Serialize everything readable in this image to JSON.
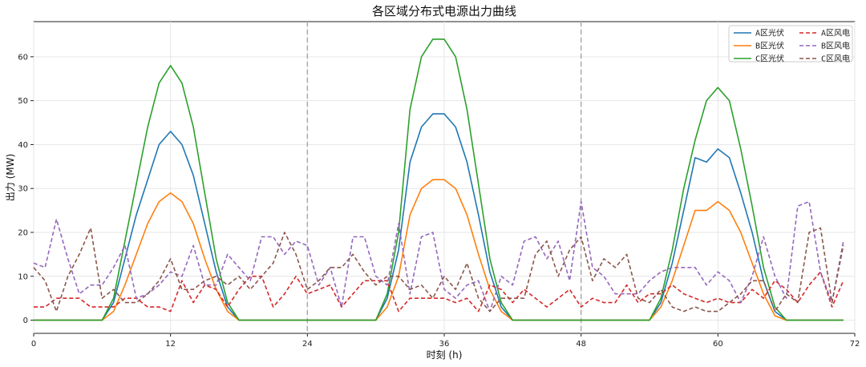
{
  "chart_data": {
    "type": "line",
    "title": "各区域分布式电源出力曲线",
    "xlabel": "时刻 (h)",
    "ylabel": "出力 (MW)",
    "xlim": [
      0,
      72
    ],
    "ylim": [
      -3,
      68
    ],
    "xticks": [
      0,
      12,
      24,
      36,
      48,
      60,
      72
    ],
    "yticks": [
      0,
      10,
      20,
      30,
      40,
      50,
      60
    ],
    "grid": true,
    "legend_position": "top-right",
    "vlines": [
      24,
      48
    ],
    "x": [
      0,
      1,
      2,
      3,
      4,
      5,
      6,
      7,
      8,
      9,
      10,
      11,
      12,
      13,
      14,
      15,
      16,
      17,
      18,
      19,
      20,
      21,
      22,
      23,
      24,
      25,
      26,
      27,
      28,
      29,
      30,
      31,
      32,
      33,
      34,
      35,
      36,
      37,
      38,
      39,
      40,
      41,
      42,
      43,
      44,
      45,
      46,
      47,
      48,
      49,
      50,
      51,
      52,
      53,
      54,
      55,
      56,
      57,
      58,
      59,
      60,
      61,
      62,
      63,
      64,
      65,
      66,
      67,
      68,
      69,
      70,
      71
    ],
    "series": [
      {
        "name": "A区光伏",
        "color": "#1f77b4",
        "dash": false,
        "values": [
          0,
          0,
          0,
          0,
          0,
          0,
          0,
          4,
          14,
          24,
          32,
          40,
          43,
          40,
          33,
          22,
          11,
          3,
          0,
          0,
          0,
          0,
          0,
          0,
          0,
          0,
          0,
          0,
          0,
          0,
          0,
          5,
          16,
          36,
          44,
          47,
          47,
          44,
          36,
          24,
          11,
          3,
          0,
          0,
          0,
          0,
          0,
          0,
          0,
          0,
          0,
          0,
          0,
          0,
          0,
          4,
          13,
          25,
          37,
          36,
          39,
          37,
          29,
          20,
          9,
          2,
          0,
          0,
          0,
          0,
          0,
          0
        ]
      },
      {
        "name": "B区光伏",
        "color": "#ff7f0e",
        "dash": false,
        "values": [
          0,
          0,
          0,
          0,
          0,
          0,
          0,
          2,
          8,
          15,
          22,
          27,
          29,
          27,
          22,
          14,
          7,
          2,
          0,
          0,
          0,
          0,
          0,
          0,
          0,
          0,
          0,
          0,
          0,
          0,
          0,
          3,
          10,
          24,
          30,
          32,
          32,
          30,
          24,
          15,
          7,
          2,
          0,
          0,
          0,
          0,
          0,
          0,
          0,
          0,
          0,
          0,
          0,
          0,
          0,
          3,
          9,
          17,
          25,
          25,
          27,
          25,
          20,
          13,
          6,
          1,
          0,
          0,
          0,
          0,
          0,
          0
        ]
      },
      {
        "name": "C区光伏",
        "color": "#2ca02c",
        "dash": false,
        "values": [
          0,
          0,
          0,
          0,
          0,
          0,
          0,
          5,
          18,
          31,
          44,
          54,
          58,
          54,
          44,
          29,
          14,
          4,
          0,
          0,
          0,
          0,
          0,
          0,
          0,
          0,
          0,
          0,
          0,
          0,
          0,
          6,
          20,
          48,
          60,
          64,
          64,
          60,
          48,
          31,
          14,
          4,
          0,
          0,
          0,
          0,
          0,
          0,
          0,
          0,
          0,
          0,
          0,
          0,
          0,
          5,
          16,
          30,
          41,
          50,
          53,
          50,
          39,
          26,
          12,
          3,
          0,
          0,
          0,
          0,
          0,
          0
        ]
      },
      {
        "name": "A区风电",
        "color": "#d62728",
        "dash": true,
        "values": [
          3,
          3,
          5,
          5,
          5,
          3,
          3,
          3,
          5,
          5,
          3,
          3,
          2,
          9,
          4,
          8,
          7,
          3,
          7,
          10,
          10,
          3,
          6,
          10,
          6,
          7,
          8,
          3,
          6,
          9,
          9,
          9,
          2,
          5,
          5,
          5,
          5,
          4,
          5,
          2,
          8,
          7,
          4,
          7,
          5,
          3,
          5,
          7,
          3,
          5,
          4,
          4,
          8,
          4,
          6,
          6,
          8,
          6,
          5,
          4,
          5,
          4,
          4,
          7,
          5,
          9,
          7,
          4,
          8,
          11,
          3,
          9
        ]
      },
      {
        "name": "B区风电",
        "color": "#9467bd",
        "dash": true,
        "values": [
          13,
          12,
          23,
          14,
          6,
          8,
          8,
          12,
          17,
          5,
          6,
          8,
          11,
          10,
          17,
          8,
          8,
          15,
          12,
          9,
          19,
          19,
          15,
          18,
          17,
          8,
          12,
          3,
          19,
          19,
          10,
          8,
          22,
          6,
          19,
          20,
          7,
          5,
          8,
          9,
          2,
          10,
          8,
          18,
          19,
          14,
          18,
          9,
          27,
          12,
          10,
          6,
          6,
          6,
          9,
          11,
          12,
          12,
          12,
          8,
          11,
          9,
          4,
          10,
          19,
          10,
          5,
          26,
          27,
          11,
          4,
          18
        ]
      },
      {
        "name": "C区风电",
        "color": "#8c564b",
        "dash": true,
        "values": [
          12,
          9,
          2,
          10,
          15,
          21,
          5,
          7,
          4,
          4,
          6,
          9,
          14,
          7,
          7,
          9,
          10,
          8,
          10,
          7,
          10,
          13,
          20,
          15,
          7,
          9,
          12,
          12,
          15,
          11,
          8,
          10,
          10,
          7,
          8,
          5,
          10,
          7,
          13,
          5,
          2,
          5,
          5,
          5,
          15,
          18,
          10,
          16,
          19,
          9,
          14,
          12,
          15,
          5,
          4,
          7,
          3,
          2,
          3,
          2,
          2,
          4,
          6,
          9,
          9,
          2,
          6,
          4,
          20,
          21,
          4,
          17
        ]
      }
    ]
  }
}
